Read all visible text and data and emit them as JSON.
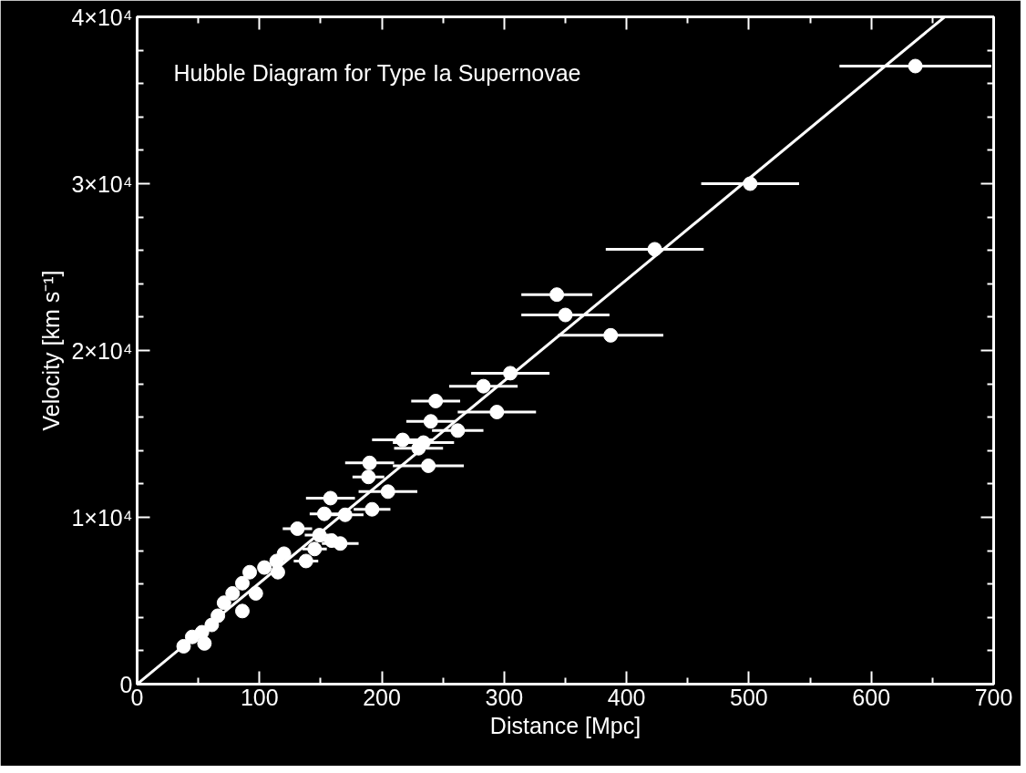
{
  "chart_data": {
    "type": "scatter",
    "title": "Hubble Diagram for Type Ia Supernovae",
    "xlabel": "Distance [Mpc]",
    "ylabel": "Velocity [km s⁻¹]",
    "xlim": [
      0,
      700
    ],
    "ylim": [
      0,
      40000
    ],
    "xticks": [
      0,
      100,
      200,
      300,
      400,
      500,
      600,
      700
    ],
    "yticks": [
      {
        "value": 0,
        "label": "0"
      },
      {
        "value": 10000,
        "label": "1×10⁴"
      },
      {
        "value": 20000,
        "label": "2×10⁴"
      },
      {
        "value": 30000,
        "label": "3×10⁴"
      },
      {
        "value": 40000,
        "label": "4×10⁴"
      }
    ],
    "grid": false,
    "marker": "circle",
    "series": [
      {
        "color": "#ffffff",
        "x": [
          636,
          501,
          423,
          343,
          350,
          387,
          305,
          283,
          244,
          294,
          240,
          262,
          217,
          234,
          230,
          190,
          238,
          189,
          205,
          158,
          192,
          170,
          153,
          131,
          149,
          166,
          145,
          138,
          120,
          104,
          115,
          86,
          97,
          78,
          71,
          86,
          66,
          61,
          53,
          45,
          38,
          55,
          92,
          114,
          159
        ],
        "values": [
          37050,
          30000,
          26070,
          23350,
          22130,
          20910,
          18640,
          17860,
          16970,
          16310,
          15750,
          15200,
          14640,
          14480,
          14140,
          13260,
          13090,
          12420,
          11540,
          11150,
          10480,
          10150,
          10210,
          9320,
          8930,
          8430,
          8100,
          7380,
          7820,
          6990,
          6710,
          6050,
          5440,
          5440,
          4880,
          4380,
          4100,
          3550,
          3110,
          2830,
          2270,
          2440,
          6710,
          7380,
          8600
        ],
        "xerrors": [
          62,
          40,
          40,
          29,
          36,
          43,
          32,
          28,
          20,
          32,
          20,
          21,
          25,
          25,
          20,
          20,
          29,
          13,
          24,
          20,
          15,
          15,
          12,
          12,
          12,
          15,
          10,
          10,
          null,
          null,
          null,
          null,
          null,
          null,
          null,
          null,
          null,
          null,
          null,
          null,
          null,
          null,
          null,
          null,
          10
        ]
      },
      {
        "type": "line",
        "color": "#ffffff",
        "line_style": "solid",
        "marker": "none",
        "x": [
          0,
          660
        ],
        "values": [
          0,
          40000
        ]
      }
    ]
  }
}
